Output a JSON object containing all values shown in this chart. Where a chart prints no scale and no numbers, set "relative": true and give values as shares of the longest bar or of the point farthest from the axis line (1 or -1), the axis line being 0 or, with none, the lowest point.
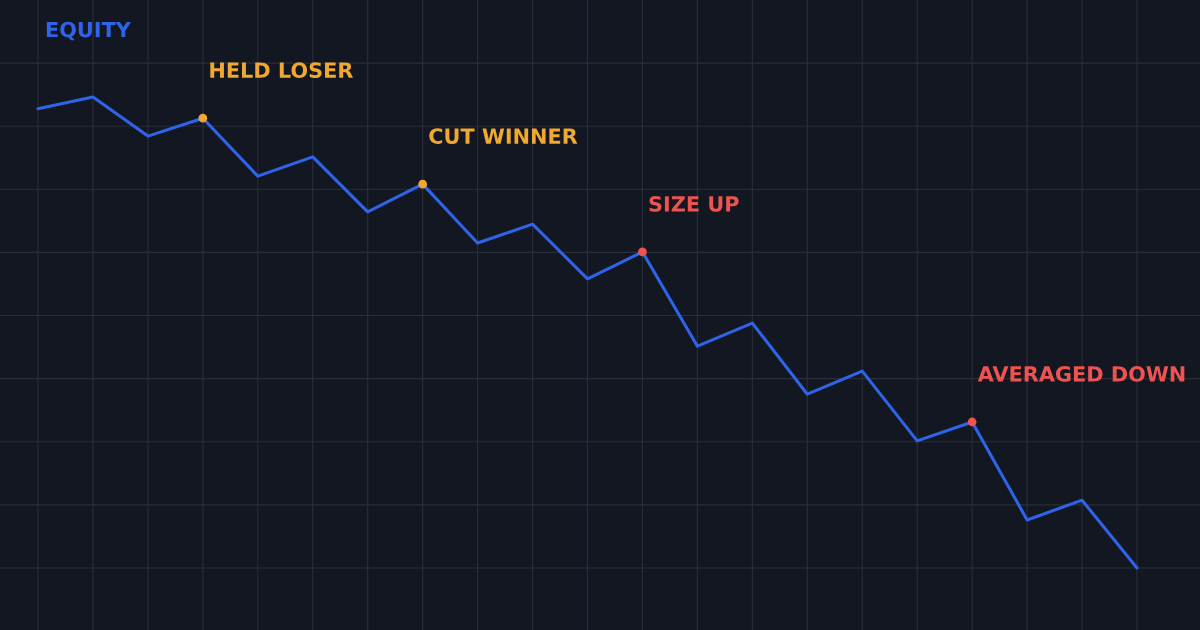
{
  "chart_data": {
    "type": "line",
    "relative": true,
    "grid": true,
    "legend": false,
    "categories": [
      null,
      null,
      null,
      null,
      null,
      null,
      null,
      null,
      null,
      null,
      null,
      null,
      null,
      null,
      null,
      null,
      null,
      null,
      null,
      null,
      null
    ],
    "series": [
      {
        "name": "EQUITY",
        "color": "#2f63e8",
        "values": [
          0.975,
          1,
          0.917,
          0.955,
          0.832,
          0.873,
          0.756,
          0.815,
          0.69,
          0.73,
          0.614,
          0.671,
          0.471,
          0.52,
          0.369,
          0.418,
          0.27,
          0.31,
          0.102,
          0.144,
          0
        ],
        "colors": [
          null,
          null,
          null,
          "#f0a830",
          null,
          null,
          null,
          "#f0a830",
          null,
          null,
          null,
          "#ef5350",
          null,
          null,
          null,
          null,
          null,
          "#ef5350",
          null,
          null,
          null
        ]
      }
    ],
    "annotations": [
      "HELD LOSER",
      "CUT WINNER",
      "SIZE UP",
      "AVERAGED DOWN"
    ]
  }
}
